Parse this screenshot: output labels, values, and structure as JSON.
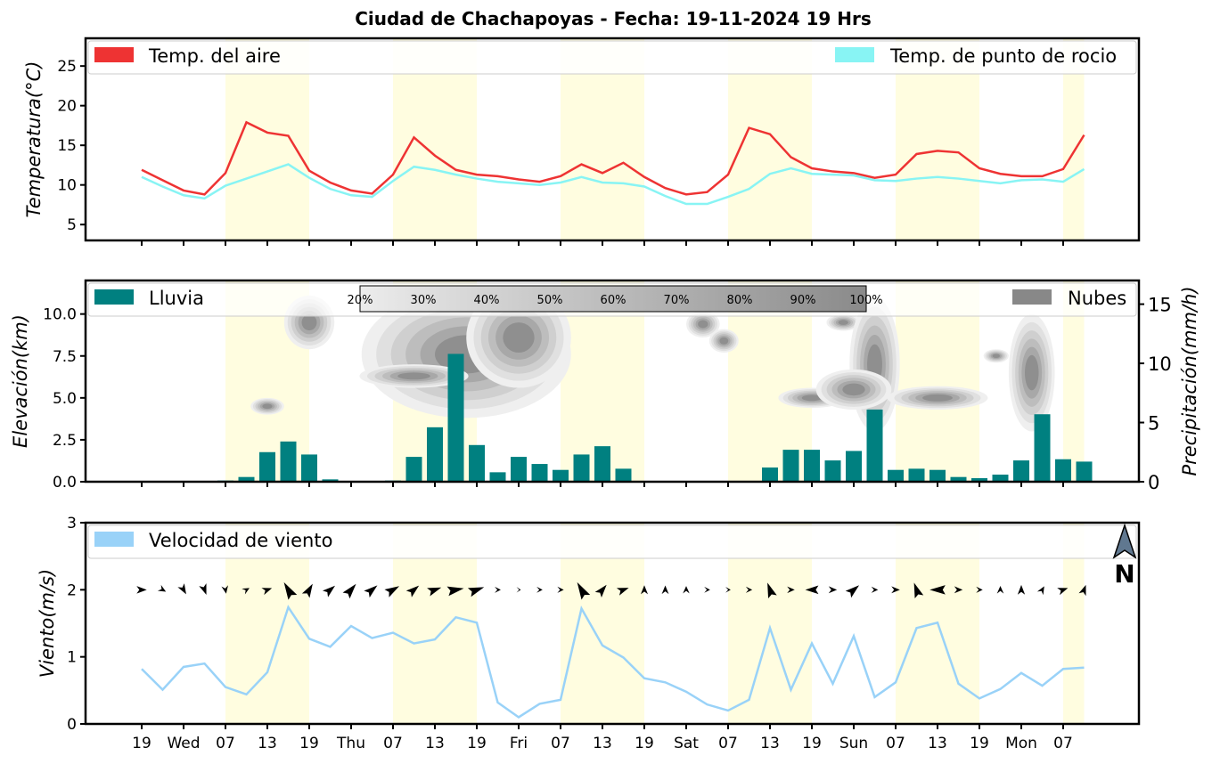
{
  "title": "Ciudad de Chachapoyas   -   Fecha: 19-11-2024 19 Hrs",
  "x_ticks": [
    "19",
    "Wed",
    "07",
    "13",
    "19",
    "Thu",
    "07",
    "13",
    "19",
    "Fri",
    "07",
    "13",
    "19",
    "Sat",
    "07",
    "13",
    "19",
    "Sun",
    "07",
    "13",
    "19",
    "Mon",
    "07"
  ],
  "colors": {
    "air": "#ee3333",
    "dew": "#88f4f4",
    "rain": "#008080",
    "clouds": "#888888",
    "wind": "#99d2f8",
    "daylight": "#fffde0"
  },
  "compass_label": "N",
  "cloud_scale_labels": [
    "20%",
    "30%",
    "40%",
    "50%",
    "60%",
    "70%",
    "80%",
    "90%",
    "100%"
  ],
  "chart_data": [
    {
      "type": "line",
      "ylabel": "Temperatura(°C)",
      "ylim": [
        3,
        28.5
      ],
      "yticks": [
        5,
        10,
        15,
        20,
        25
      ],
      "legend": "top",
      "series": [
        {
          "name": "Temp. del aire",
          "values": [
            11.9,
            10.6,
            9.3,
            8.8,
            11.5,
            17.9,
            16.6,
            16.2,
            11.8,
            10.3,
            9.3,
            8.9,
            11.3,
            16.0,
            13.7,
            11.9,
            11.3,
            11.1,
            10.7,
            10.4,
            11.1,
            12.6,
            11.5,
            12.8,
            11.0,
            9.6,
            8.8,
            9.1,
            11.3,
            17.2,
            16.4,
            13.5,
            12.1,
            11.7,
            11.5,
            10.9,
            11.3,
            13.9,
            14.3,
            14.1,
            12.1,
            11.4,
            11.1,
            11.1,
            12.0,
            16.3
          ]
        },
        {
          "name": "Temp. de punto de rocio",
          "values": [
            11.0,
            9.8,
            8.7,
            8.3,
            9.9,
            10.8,
            11.7,
            12.6,
            10.9,
            9.5,
            8.7,
            8.5,
            10.5,
            12.3,
            11.9,
            11.3,
            10.8,
            10.4,
            10.2,
            10.0,
            10.3,
            11.0,
            10.3,
            10.2,
            9.8,
            8.6,
            7.6,
            7.6,
            8.5,
            9.5,
            11.4,
            12.1,
            11.4,
            11.3,
            11.2,
            10.6,
            10.5,
            10.8,
            11.0,
            10.8,
            10.5,
            10.2,
            10.6,
            10.7,
            10.4,
            12.0
          ]
        }
      ]
    },
    {
      "type": "bar",
      "ylabel": "Elevación(km)",
      "ylabel_right": "Precipitación(mm/h)",
      "ylim_left": [
        0,
        12
      ],
      "yticks_left": [
        0.0,
        2.5,
        5.0,
        7.5,
        10.0
      ],
      "ylim_right": [
        0,
        17
      ],
      "yticks_right": [
        0,
        5,
        10,
        15
      ],
      "legend": "top",
      "series": [
        {
          "name": "Lluvia",
          "values": [
            0,
            0,
            0,
            0,
            0.1,
            0.4,
            2.5,
            3.4,
            2.3,
            0.2,
            0.05,
            0.05,
            0.1,
            2.1,
            4.6,
            10.8,
            3.1,
            0.8,
            2.1,
            1.5,
            1.0,
            2.3,
            3.0,
            1.1,
            0,
            0,
            0,
            0,
            0,
            0.05,
            1.2,
            2.7,
            2.7,
            1.8,
            2.6,
            6.1,
            1.0,
            1.1,
            1.0,
            0.4,
            0.3,
            0.6,
            1.8,
            5.7,
            1.9,
            1.7
          ]
        },
        {
          "name": "Nubes",
          "values": []
        }
      ]
    },
    {
      "type": "line",
      "ylabel": "Viento(m/s)",
      "ylim": [
        0,
        3
      ],
      "yticks": [
        0,
        1,
        2,
        3
      ],
      "legend": "top",
      "series": [
        {
          "name": "Velocidad de viento",
          "values": [
            0.82,
            0.51,
            0.85,
            0.9,
            0.55,
            0.44,
            0.77,
            1.74,
            1.27,
            1.15,
            1.46,
            1.28,
            1.36,
            1.2,
            1.26,
            1.59,
            1.51,
            0.32,
            0.1,
            0.3,
            0.36,
            1.72,
            1.17,
            0.99,
            0.68,
            0.62,
            0.48,
            0.29,
            0.2,
            0.36,
            1.43,
            0.51,
            1.2,
            0.6,
            1.31,
            0.4,
            0.62,
            1.43,
            1.51,
            0.6,
            0.38,
            0.52,
            0.76,
            0.57,
            0.82,
            0.84
          ]
        }
      ]
    }
  ]
}
